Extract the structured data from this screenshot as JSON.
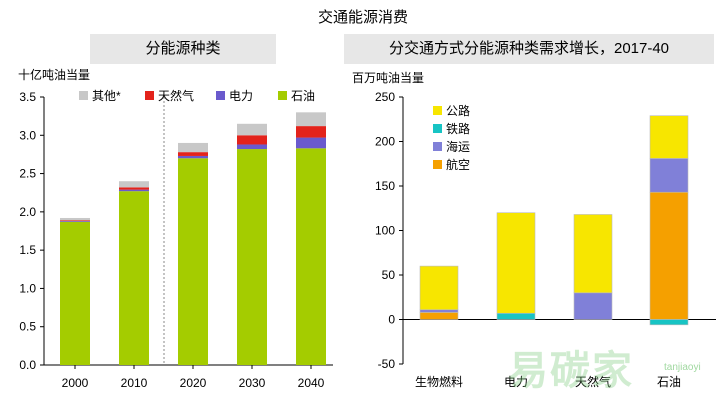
{
  "title": "交通能源消费",
  "watermark": "易碳家",
  "watermark_sub": "tanjiaoyi",
  "colors": {
    "oil_left": "#a4cc00",
    "gas_left": "#e3231b",
    "power_left": "#6a5acd",
    "other_left": "#c8c8c8",
    "highway": "#f7e600",
    "rail": "#17c4c4",
    "shipping": "#8080d8",
    "aviation": "#f5a000"
  },
  "chart_data": [
    {
      "type": "bar",
      "stacked": true,
      "panel_title": "分能源种类",
      "ylabel": "十亿吨油当量",
      "categories": [
        "2000",
        "2010",
        "2020",
        "2030",
        "2040"
      ],
      "ylim": [
        0,
        3.5
      ],
      "yticks": [
        "0.0",
        "0.5",
        "1.0",
        "1.5",
        "2.0",
        "2.5",
        "3.0",
        "3.5"
      ],
      "legend": [
        "其他*",
        "天然气",
        "电力",
        "石油"
      ],
      "series": [
        {
          "name": "石油",
          "values": [
            1.87,
            2.27,
            2.7,
            2.82,
            2.83
          ]
        },
        {
          "name": "电力",
          "values": [
            0.01,
            0.02,
            0.03,
            0.06,
            0.14
          ]
        },
        {
          "name": "天然气",
          "values": [
            0.01,
            0.03,
            0.05,
            0.12,
            0.15
          ]
        },
        {
          "name": "其他*",
          "values": [
            0.03,
            0.08,
            0.12,
            0.15,
            0.18
          ]
        }
      ]
    },
    {
      "type": "bar",
      "stacked": true,
      "panel_title": "分交通方式分能源种类需求增长，2017-40",
      "ylabel": "百万吨油当量",
      "categories": [
        "生物燃料",
        "电力",
        "天然气",
        "石油"
      ],
      "ylim": [
        -50,
        250
      ],
      "yticks": [
        "-50",
        "0",
        "50",
        "100",
        "150",
        "200",
        "250"
      ],
      "legend": [
        "公路",
        "铁路",
        "海运",
        "航空"
      ],
      "series": [
        {
          "name": "航空",
          "values": [
            8,
            0,
            0,
            143
          ]
        },
        {
          "name": "海运",
          "values": [
            3,
            0,
            30,
            38
          ]
        },
        {
          "name": "铁路",
          "values": [
            0,
            7,
            0,
            -6
          ]
        },
        {
          "name": "公路",
          "values": [
            49,
            113,
            88,
            48
          ]
        }
      ]
    }
  ]
}
